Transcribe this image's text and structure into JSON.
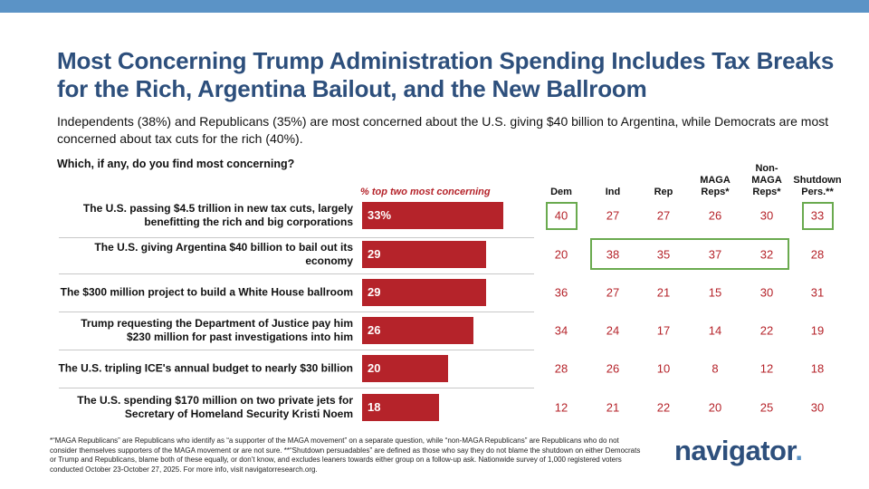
{
  "chart_data": {
    "type": "bar",
    "title": "Most Concerning Trump Administration Spending Includes Tax Breaks for the Rich, Argentina Bailout, and the New Ballroom",
    "subtitle": "Independents (38%) and Republicans (35%) are most concerned about the U.S. giving $40 billion to Argentina, while Democrats are most concerned about tax cuts for the rich (40%).",
    "question": "Which, if any, do you find most concerning?",
    "bar_header": "% top two most concerning",
    "categories": [
      "The U.S. passing $4.5 trillion in new tax cuts, largely benefitting the rich and big corporations",
      "The U.S. giving Argentina $40 billion to bail out its economy",
      "The $300 million project to build a White House ballroom",
      "Trump requesting the Department of Justice pay him $230 million for past investigations into him",
      "The U.S. tripling ICE's annual budget to nearly $30 billion",
      "The U.S. spending $170 million on two private jets for Secretary of Homeland Security Kristi Noem"
    ],
    "values": [
      33,
      29,
      29,
      26,
      20,
      18
    ],
    "value_labels": [
      "33%",
      "29",
      "29",
      "26",
      "20",
      "18"
    ],
    "color": "#b5232a",
    "table": {
      "columns": [
        "Dem",
        "Ind",
        "Rep",
        "MAGA Reps*",
        "Non-MAGA Reps*",
        "Shutdown Pers.**"
      ],
      "rows": [
        [
          40,
          27,
          27,
          26,
          30,
          33
        ],
        [
          20,
          38,
          35,
          37,
          32,
          28
        ],
        [
          36,
          27,
          21,
          15,
          30,
          31
        ],
        [
          34,
          24,
          17,
          14,
          22,
          19
        ],
        [
          28,
          26,
          10,
          8,
          12,
          18
        ],
        [
          12,
          21,
          22,
          20,
          25,
          30
        ]
      ]
    },
    "footnote": "*“MAGA Republicans” are Republicans who identify as “a supporter of the MAGA movement” on a separate question, while “non-MAGA Republicans” are Republicans who do not consider themselves supporters of the MAGA movement or are not sure. **“Shutdown persuadables” are defined as those who say they do not blame the shutdown on either Democrats or Trump and Republicans, blame both of these equally, or don’t know, and excludes leaners towards either group on a follow-up ask. Nationwide survey of 1,000 registered voters conducted October 23-October 27, 2025. For more info, visit navigatorresearch.org.",
    "brand": "navigator"
  }
}
